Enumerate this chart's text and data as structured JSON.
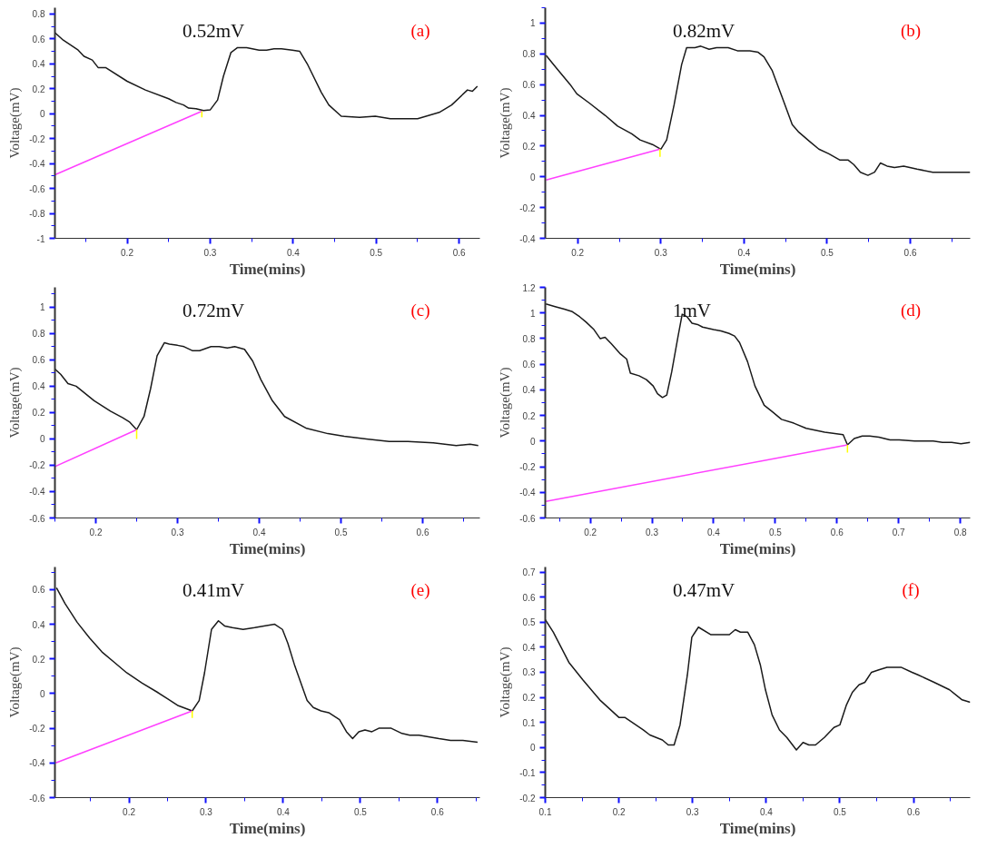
{
  "chart_data": [
    {
      "type": "line",
      "xlabel": "Time(mins)",
      "ylabel": "Voltage(mV)",
      "annotations": [
        "0.52mV",
        "(a)"
      ],
      "xlim": [
        0.113,
        0.625
      ],
      "ylim": [
        -1,
        0.85
      ],
      "xticks": [
        0.2,
        0.3,
        0.4,
        0.5,
        0.6
      ],
      "yticks": [
        -1,
        -0.8,
        -0.6,
        -0.4,
        -0.2,
        0,
        0.2,
        0.4,
        0.6,
        0.8
      ],
      "series": [
        {
          "color": "#1a1a1a",
          "x": [
            0.113,
            0.123,
            0.141,
            0.148,
            0.158,
            0.165,
            0.174,
            0.2,
            0.222,
            0.25,
            0.259,
            0.268,
            0.274,
            0.283,
            0.292,
            0.3,
            0.309,
            0.316,
            0.325,
            0.333,
            0.344,
            0.359,
            0.368,
            0.377,
            0.386,
            0.399,
            0.408,
            0.417,
            0.434,
            0.443,
            0.458,
            0.48,
            0.499,
            0.517,
            0.55,
            0.576,
            0.591,
            0.61,
            0.616,
            0.622
          ],
          "values": [
            0.65,
            0.59,
            0.51,
            0.46,
            0.43,
            0.37,
            0.37,
            0.26,
            0.19,
            0.12,
            0.09,
            0.07,
            0.045,
            0.04,
            0.025,
            0.03,
            0.11,
            0.3,
            0.49,
            0.53,
            0.53,
            0.51,
            0.51,
            0.52,
            0.52,
            0.51,
            0.5,
            0.4,
            0.17,
            0.07,
            -0.02,
            -0.03,
            -0.02,
            -0.04,
            -0.04,
            0.01,
            0.07,
            0.19,
            0.18,
            0.22
          ]
        },
        {
          "color": "#ff40ff",
          "x": [
            0.113,
            0.29
          ],
          "values": [
            -0.49,
            0.02
          ]
        },
        {
          "color": "#ffff00",
          "x": [
            0.29,
            0.29
          ],
          "values": [
            0.02,
            -0.03
          ]
        }
      ]
    },
    {
      "type": "line",
      "xlabel": "Time(mins)",
      "ylabel": "Voltage(mV)",
      "annotations": [
        "0.82mV",
        "(b)"
      ],
      "xlim": [
        0.161,
        0.672
      ],
      "ylim": [
        -0.4,
        1.1
      ],
      "xticks": [
        0.2,
        0.3,
        0.4,
        0.5,
        0.6
      ],
      "yticks": [
        -0.4,
        -0.2,
        0,
        0.2,
        0.4,
        0.6,
        0.8,
        1
      ],
      "series": [
        {
          "color": "#1a1a1a",
          "x": [
            0.162,
            0.174,
            0.191,
            0.199,
            0.214,
            0.233,
            0.248,
            0.265,
            0.275,
            0.29,
            0.3,
            0.307,
            0.316,
            0.325,
            0.331,
            0.341,
            0.348,
            0.358,
            0.367,
            0.381,
            0.392,
            0.407,
            0.417,
            0.424,
            0.434,
            0.445,
            0.458,
            0.466,
            0.479,
            0.49,
            0.502,
            0.515,
            0.525,
            0.532,
            0.54,
            0.549,
            0.557,
            0.564,
            0.572,
            0.581,
            0.592,
            0.608,
            0.627,
            0.646,
            0.672
          ],
          "values": [
            0.79,
            0.71,
            0.6,
            0.54,
            0.48,
            0.4,
            0.33,
            0.28,
            0.24,
            0.21,
            0.18,
            0.24,
            0.47,
            0.73,
            0.84,
            0.84,
            0.85,
            0.83,
            0.84,
            0.84,
            0.82,
            0.82,
            0.81,
            0.78,
            0.69,
            0.53,
            0.34,
            0.29,
            0.23,
            0.18,
            0.15,
            0.11,
            0.11,
            0.08,
            0.03,
            0.01,
            0.03,
            0.09,
            0.07,
            0.06,
            0.07,
            0.05,
            0.03,
            0.03,
            0.03
          ]
        },
        {
          "color": "#ff40ff",
          "x": [
            0.162,
            0.299
          ],
          "values": [
            -0.02,
            0.18
          ]
        },
        {
          "color": "#ffff00",
          "x": [
            0.299,
            0.299
          ],
          "values": [
            0.18,
            0.13
          ]
        }
      ]
    },
    {
      "type": "line",
      "xlabel": "Time(mins)",
      "ylabel": "Voltage(mV)",
      "annotations": [
        "0.72mV",
        "(c)"
      ],
      "xlim": [
        0.15,
        0.67
      ],
      "ylim": [
        -0.6,
        1.15
      ],
      "xticks": [
        0.2,
        0.3,
        0.4,
        0.5,
        0.6
      ],
      "yticks": [
        -0.6,
        -0.4,
        -0.2,
        0,
        0.2,
        0.4,
        0.6,
        0.8,
        1
      ],
      "series": [
        {
          "color": "#1a1a1a",
          "x": [
            0.15,
            0.157,
            0.166,
            0.176,
            0.198,
            0.218,
            0.233,
            0.241,
            0.25,
            0.259,
            0.267,
            0.275,
            0.284,
            0.29,
            0.3,
            0.308,
            0.318,
            0.327,
            0.341,
            0.351,
            0.361,
            0.37,
            0.382,
            0.392,
            0.402,
            0.416,
            0.431,
            0.458,
            0.484,
            0.504,
            0.531,
            0.559,
            0.582,
            0.613,
            0.641,
            0.658,
            0.668
          ],
          "values": [
            0.53,
            0.49,
            0.42,
            0.4,
            0.29,
            0.21,
            0.16,
            0.13,
            0.07,
            0.17,
            0.38,
            0.63,
            0.73,
            0.72,
            0.71,
            0.7,
            0.67,
            0.67,
            0.7,
            0.7,
            0.69,
            0.7,
            0.68,
            0.59,
            0.45,
            0.29,
            0.17,
            0.08,
            0.04,
            0.02,
            0.0,
            -0.02,
            -0.02,
            -0.03,
            -0.05,
            -0.04,
            -0.05
          ]
        },
        {
          "color": "#ff40ff",
          "x": [
            0.15,
            0.25
          ],
          "values": [
            -0.21,
            0.07
          ]
        },
        {
          "color": "#ffff00",
          "x": [
            0.25,
            0.25
          ],
          "values": [
            0.07,
            0.0
          ]
        }
      ]
    },
    {
      "type": "line",
      "xlabel": "Time(mins)",
      "ylabel": "Voltage(mV)",
      "annotations": [
        "1mV",
        "(d)"
      ],
      "xlim": [
        0.127,
        0.816
      ],
      "ylim": [
        -0.6,
        1.2
      ],
      "xticks": [
        0.2,
        0.3,
        0.4,
        0.5,
        0.6,
        0.7,
        0.8
      ],
      "yticks": [
        -0.6,
        -0.4,
        -0.2,
        0,
        0.2,
        0.4,
        0.6,
        0.8,
        1,
        1.2
      ],
      "series": [
        {
          "color": "#1a1a1a",
          "x": [
            0.128,
            0.143,
            0.158,
            0.171,
            0.183,
            0.193,
            0.206,
            0.216,
            0.224,
            0.234,
            0.249,
            0.259,
            0.265,
            0.279,
            0.291,
            0.302,
            0.309,
            0.317,
            0.324,
            0.332,
            0.342,
            0.349,
            0.357,
            0.365,
            0.374,
            0.382,
            0.4,
            0.412,
            0.425,
            0.434,
            0.442,
            0.455,
            0.467,
            0.482,
            0.495,
            0.51,
            0.53,
            0.55,
            0.58,
            0.61,
            0.617,
            0.628,
            0.641,
            0.653,
            0.668,
            0.686,
            0.701,
            0.726,
            0.756,
            0.771,
            0.786,
            0.801,
            0.816
          ],
          "values": [
            1.07,
            1.05,
            1.03,
            1.01,
            0.97,
            0.93,
            0.87,
            0.8,
            0.81,
            0.76,
            0.68,
            0.64,
            0.53,
            0.51,
            0.48,
            0.43,
            0.37,
            0.34,
            0.36,
            0.54,
            0.81,
            0.99,
            0.97,
            0.92,
            0.91,
            0.89,
            0.87,
            0.86,
            0.84,
            0.82,
            0.77,
            0.62,
            0.43,
            0.28,
            0.23,
            0.17,
            0.14,
            0.1,
            0.07,
            0.05,
            -0.03,
            0.02,
            0.04,
            0.04,
            0.03,
            0.01,
            0.01,
            0.0,
            0.0,
            -0.01,
            -0.01,
            -0.02,
            -0.01
          ]
        },
        {
          "color": "#ff40ff",
          "x": [
            0.128,
            0.617
          ],
          "values": [
            -0.47,
            -0.03
          ]
        },
        {
          "color": "#ffff00",
          "x": [
            0.617,
            0.617
          ],
          "values": [
            -0.03,
            -0.09
          ]
        }
      ]
    },
    {
      "type": "line",
      "xlabel": "Time(mins)",
      "ylabel": "Voltage(mV)",
      "annotations": [
        "0.41mV",
        "(e)"
      ],
      "xlim": [
        0.104,
        0.655
      ],
      "ylim": [
        -0.6,
        0.73
      ],
      "xticks": [
        0.2,
        0.3,
        0.4,
        0.5,
        0.6
      ],
      "yticks": [
        -0.6,
        -0.4,
        -0.2,
        0,
        0.2,
        0.4,
        0.6
      ],
      "series": [
        {
          "color": "#1a1a1a",
          "x": [
            0.106,
            0.117,
            0.133,
            0.149,
            0.165,
            0.181,
            0.197,
            0.217,
            0.236,
            0.25,
            0.264,
            0.282,
            0.291,
            0.298,
            0.307,
            0.316,
            0.324,
            0.334,
            0.348,
            0.363,
            0.375,
            0.389,
            0.399,
            0.406,
            0.415,
            0.431,
            0.439,
            0.449,
            0.459,
            0.473,
            0.482,
            0.49,
            0.498,
            0.506,
            0.515,
            0.524,
            0.54,
            0.554,
            0.564,
            0.576,
            0.602,
            0.617,
            0.633,
            0.652
          ],
          "values": [
            0.61,
            0.52,
            0.41,
            0.32,
            0.24,
            0.18,
            0.12,
            0.06,
            0.01,
            -0.03,
            -0.07,
            -0.1,
            -0.04,
            0.12,
            0.37,
            0.42,
            0.39,
            0.38,
            0.37,
            0.38,
            0.39,
            0.4,
            0.37,
            0.29,
            0.16,
            -0.04,
            -0.08,
            -0.1,
            -0.11,
            -0.15,
            -0.22,
            -0.26,
            -0.22,
            -0.21,
            -0.22,
            -0.2,
            -0.2,
            -0.23,
            -0.24,
            -0.24,
            -0.26,
            -0.27,
            -0.27,
            -0.28
          ]
        },
        {
          "color": "#ff40ff",
          "x": [
            0.105,
            0.282
          ],
          "values": [
            -0.4,
            -0.1
          ]
        },
        {
          "color": "#ffff00",
          "x": [
            0.282,
            0.282
          ],
          "values": [
            -0.1,
            -0.14
          ]
        }
      ]
    },
    {
      "type": "line",
      "xlabel": "Time(mins)",
      "ylabel": "Voltage(mV)",
      "annotations": [
        "0.47mV",
        "(f)"
      ],
      "xlim": [
        0.1,
        0.677
      ],
      "ylim": [
        -0.2,
        0.72
      ],
      "xticks": [
        0.1,
        0.2,
        0.3,
        0.4,
        0.5,
        0.6
      ],
      "yticks": [
        -0.2,
        -0.1,
        0,
        0.1,
        0.2,
        0.3,
        0.4,
        0.5,
        0.6,
        0.7
      ],
      "series": [
        {
          "color": "#1a1a1a",
          "x": [
            0.1,
            0.111,
            0.132,
            0.151,
            0.174,
            0.2,
            0.208,
            0.233,
            0.242,
            0.259,
            0.267,
            0.275,
            0.283,
            0.293,
            0.299,
            0.308,
            0.325,
            0.342,
            0.35,
            0.358,
            0.365,
            0.375,
            0.384,
            0.392,
            0.399,
            0.408,
            0.418,
            0.428,
            0.441,
            0.45,
            0.458,
            0.467,
            0.479,
            0.492,
            0.5,
            0.509,
            0.517,
            0.526,
            0.534,
            0.543,
            0.553,
            0.564,
            0.583,
            0.598,
            0.606,
            0.628,
            0.649,
            0.666,
            0.677
          ],
          "values": [
            0.51,
            0.46,
            0.34,
            0.27,
            0.19,
            0.12,
            0.12,
            0.07,
            0.05,
            0.03,
            0.01,
            0.01,
            0.09,
            0.29,
            0.44,
            0.48,
            0.45,
            0.45,
            0.45,
            0.47,
            0.46,
            0.46,
            0.41,
            0.33,
            0.23,
            0.13,
            0.07,
            0.04,
            -0.01,
            0.02,
            0.01,
            0.01,
            0.04,
            0.08,
            0.09,
            0.17,
            0.22,
            0.25,
            0.26,
            0.3,
            0.31,
            0.32,
            0.32,
            0.3,
            0.29,
            0.26,
            0.23,
            0.19,
            0.18
          ]
        }
      ]
    }
  ]
}
